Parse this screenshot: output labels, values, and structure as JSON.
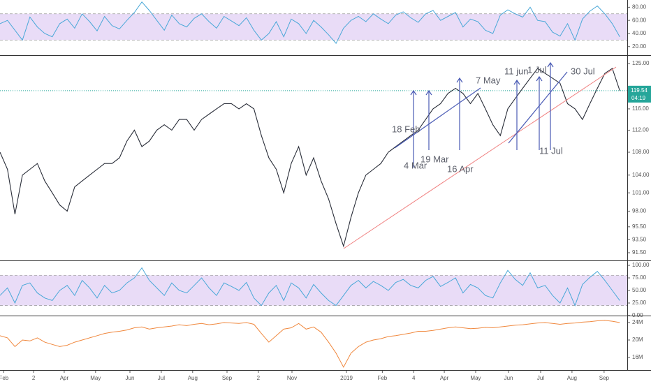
{
  "chart_data": [
    {
      "type": "line",
      "color": "#4aa8d8",
      "xlim": [
        0,
        84
      ],
      "ylim": [
        7,
        91
      ],
      "band": [
        30,
        70
      ],
      "band_color": "#e9dcf7",
      "yticks": [
        {
          "value": 20,
          "label": "20.00"
        },
        {
          "value": 40,
          "label": "40.00"
        },
        {
          "value": 60,
          "label": "60.00"
        },
        {
          "value": 80,
          "label": "80.00"
        }
      ],
      "x": [
        0,
        1,
        2,
        3,
        4,
        5,
        6,
        7,
        8,
        9,
        10,
        11,
        12,
        13,
        14,
        15,
        16,
        17,
        18,
        19,
        20,
        21,
        22,
        23,
        24,
        25,
        26,
        27,
        28,
        29,
        30,
        31,
        32,
        33,
        34,
        35,
        36,
        37,
        38,
        39,
        40,
        41,
        42,
        43,
        44,
        45,
        46,
        47,
        48,
        49,
        50,
        51,
        52,
        53,
        54,
        55,
        56,
        57,
        58,
        59,
        60,
        61,
        62,
        63,
        64,
        65,
        66,
        67,
        68,
        69,
        70,
        71,
        72,
        73,
        74,
        75,
        76,
        77,
        78,
        79,
        80,
        81,
        82,
        83
      ],
      "values": [
        55,
        60,
        45,
        30,
        65,
        50,
        40,
        35,
        55,
        62,
        48,
        70,
        58,
        44,
        66,
        52,
        47,
        60,
        72,
        88,
        75,
        60,
        45,
        68,
        55,
        50,
        63,
        70,
        58,
        48,
        66,
        59,
        52,
        64,
        45,
        30,
        40,
        58,
        35,
        62,
        55,
        40,
        60,
        50,
        38,
        25,
        48,
        60,
        66,
        58,
        70,
        62,
        55,
        68,
        73,
        64,
        57,
        70,
        75,
        60,
        66,
        72,
        50,
        62,
        58,
        45,
        40,
        68,
        76,
        70,
        65,
        80,
        60,
        58,
        42,
        36,
        55,
        30,
        62,
        74,
        82,
        70,
        55,
        35
      ]
    },
    {
      "type": "line",
      "color": "#2a2e39",
      "log": true,
      "xlim": [
        0,
        84
      ],
      "ylim": [
        90.35,
        126.6
      ],
      "yticks": [
        {
          "value": 91.5,
          "label": "91.50"
        },
        {
          "value": 93.5,
          "label": "93.50"
        },
        {
          "value": 95.5,
          "label": "95.50"
        },
        {
          "value": 98,
          "label": "98.00"
        },
        {
          "value": 101,
          "label": "101.00"
        },
        {
          "value": 104,
          "label": "104.00"
        },
        {
          "value": 108,
          "label": "108.00"
        },
        {
          "value": 112,
          "label": "112.00"
        },
        {
          "value": 116,
          "label": "116.00"
        },
        {
          "value": 125,
          "label": "125.00"
        }
      ],
      "xticks": [
        {
          "value": 0.5,
          "label": "Feb"
        },
        {
          "value": 4.5,
          "label": "2"
        },
        {
          "value": 8.6,
          "label": "Apr"
        },
        {
          "value": 12.8,
          "label": "May"
        },
        {
          "value": 17.4,
          "label": "Jun"
        },
        {
          "value": 21.6,
          "label": "Jul"
        },
        {
          "value": 25.8,
          "label": "Aug"
        },
        {
          "value": 30.4,
          "label": "Sep"
        },
        {
          "value": 34.6,
          "label": "2"
        },
        {
          "value": 39.1,
          "label": "Nov"
        },
        {
          "value": 46.4,
          "label": "2019"
        },
        {
          "value": 51.2,
          "label": "Feb"
        },
        {
          "value": 55.4,
          "label": "4"
        },
        {
          "value": 59.5,
          "label": "Apr"
        },
        {
          "value": 63.7,
          "label": "May"
        },
        {
          "value": 68.1,
          "label": "Jun"
        },
        {
          "value": 72.4,
          "label": "Jul"
        },
        {
          "value": 76.6,
          "label": "Aug"
        },
        {
          "value": 80.9,
          "label": "Sep"
        }
      ],
      "price_line": {
        "value": 119.54,
        "label": "119.54"
      },
      "countdown": "04:19",
      "price_color": "#26a69a",
      "annotations": [
        "18 Feb",
        "4 Mar",
        "19 Mar",
        "7 May",
        "16 Apr",
        "11 jun",
        "1 Jul",
        "30 Jul",
        "11 Jul"
      ],
      "x": [
        0,
        1,
        2,
        3,
        4,
        5,
        6,
        7,
        8,
        9,
        10,
        11,
        12,
        13,
        14,
        15,
        16,
        17,
        18,
        19,
        20,
        21,
        22,
        23,
        24,
        25,
        26,
        27,
        28,
        29,
        30,
        31,
        32,
        33,
        34,
        35,
        36,
        37,
        38,
        39,
        40,
        41,
        42,
        43,
        44,
        45,
        46,
        47,
        48,
        49,
        50,
        51,
        52,
        53,
        54,
        55,
        56,
        57,
        58,
        59,
        60,
        61,
        62,
        63,
        64,
        65,
        66,
        67,
        68,
        69,
        70,
        71,
        72,
        73,
        74,
        75,
        76,
        77,
        78,
        79,
        80,
        81,
        82,
        83
      ],
      "values": [
        108,
        105,
        97.5,
        104,
        105,
        106,
        103,
        101,
        99,
        98,
        102,
        103,
        104,
        105,
        106,
        106,
        107,
        110,
        112,
        109,
        110,
        112,
        113,
        112,
        114,
        114,
        112,
        114,
        115,
        116,
        117,
        117,
        116,
        117,
        116,
        111,
        107,
        105,
        101,
        106,
        109,
        104,
        107,
        103,
        100,
        96,
        92.5,
        97,
        101,
        104,
        105,
        106,
        108,
        109,
        110,
        111,
        112,
        114,
        116,
        117,
        119,
        120,
        119,
        117,
        119,
        116,
        113,
        111,
        116,
        118,
        120,
        122,
        124,
        123,
        122,
        121,
        117,
        116,
        114,
        117,
        120,
        123,
        124,
        119.54
      ]
    },
    {
      "type": "line",
      "color": "#4aa8d8",
      "xlim": [
        0,
        84
      ],
      "ylim": [
        0,
        107
      ],
      "band": [
        20,
        80
      ],
      "band_color": "#e9dcf7",
      "yticks": [
        {
          "value": 0,
          "label": "0.00"
        },
        {
          "value": 25,
          "label": "25.00"
        },
        {
          "value": 50,
          "label": "50.00"
        },
        {
          "value": 75,
          "label": "75.00"
        },
        {
          "value": 100,
          "label": "100.00"
        }
      ],
      "x": [
        0,
        1,
        2,
        3,
        4,
        5,
        6,
        7,
        8,
        9,
        10,
        11,
        12,
        13,
        14,
        15,
        16,
        17,
        18,
        19,
        20,
        21,
        22,
        23,
        24,
        25,
        26,
        27,
        28,
        29,
        30,
        31,
        32,
        33,
        34,
        35,
        36,
        37,
        38,
        39,
        40,
        41,
        42,
        43,
        44,
        45,
        46,
        47,
        48,
        49,
        50,
        51,
        52,
        53,
        54,
        55,
        56,
        57,
        58,
        59,
        60,
        61,
        62,
        63,
        64,
        65,
        66,
        67,
        68,
        69,
        70,
        71,
        72,
        73,
        74,
        75,
        76,
        77,
        78,
        79,
        80,
        81,
        82,
        83
      ],
      "values": [
        40,
        55,
        25,
        60,
        65,
        45,
        35,
        30,
        50,
        60,
        40,
        70,
        55,
        35,
        60,
        45,
        50,
        65,
        75,
        95,
        70,
        55,
        40,
        65,
        50,
        45,
        60,
        75,
        55,
        40,
        65,
        58,
        50,
        66,
        35,
        20,
        45,
        60,
        30,
        65,
        55,
        35,
        62,
        45,
        30,
        20,
        40,
        60,
        70,
        55,
        68,
        60,
        50,
        66,
        72,
        60,
        55,
        70,
        78,
        58,
        66,
        75,
        45,
        62,
        55,
        40,
        35,
        65,
        90,
        72,
        60,
        85,
        55,
        60,
        40,
        25,
        55,
        20,
        62,
        76,
        88,
        70,
        50,
        30
      ]
    },
    {
      "type": "line",
      "color": "#f0883e",
      "xlim": [
        0,
        84
      ],
      "ylim": [
        13120000,
        25280000
      ],
      "yticks": [
        {
          "value": 16000000,
          "label": "16M"
        },
        {
          "value": 20000000,
          "label": "20M"
        },
        {
          "value": 24000000,
          "label": "24M"
        }
      ],
      "x": [
        0,
        1,
        2,
        3,
        4,
        5,
        6,
        7,
        8,
        9,
        10,
        11,
        12,
        13,
        14,
        15,
        16,
        17,
        18,
        19,
        20,
        21,
        22,
        23,
        24,
        25,
        26,
        27,
        28,
        29,
        30,
        31,
        32,
        33,
        34,
        35,
        36,
        37,
        38,
        39,
        40,
        41,
        42,
        43,
        44,
        45,
        46,
        47,
        48,
        49,
        50,
        51,
        52,
        53,
        54,
        55,
        56,
        57,
        58,
        59,
        60,
        61,
        62,
        63,
        64,
        65,
        66,
        67,
        68,
        69,
        70,
        71,
        72,
        73,
        74,
        75,
        76,
        77,
        78,
        79,
        80,
        81,
        82,
        83
      ],
      "values": [
        21000000,
        20500000,
        18500000,
        20000000,
        19800000,
        20500000,
        19500000,
        19000000,
        18500000,
        18800000,
        19500000,
        20000000,
        20500000,
        21000000,
        21500000,
        21800000,
        22000000,
        22300000,
        22800000,
        23000000,
        22500000,
        22800000,
        23000000,
        23200000,
        23500000,
        23300000,
        23600000,
        23800000,
        23500000,
        23700000,
        24000000,
        23900000,
        23800000,
        24000000,
        23600000,
        21500000,
        19500000,
        21000000,
        22500000,
        22800000,
        23800000,
        22500000,
        23000000,
        21800000,
        19500000,
        17000000,
        13800000,
        17000000,
        18500000,
        19500000,
        20000000,
        20300000,
        20800000,
        21000000,
        21300000,
        21600000,
        22000000,
        22000000,
        22200000,
        22500000,
        22800000,
        23000000,
        22800000,
        22600000,
        22700000,
        22900000,
        22800000,
        23000000,
        23200000,
        23400000,
        23500000,
        23700000,
        23900000,
        24000000,
        23800000,
        23600000,
        23800000,
        23900000,
        24100000,
        24200000,
        24400000,
        24500000,
        24300000,
        24000000
      ]
    }
  ]
}
